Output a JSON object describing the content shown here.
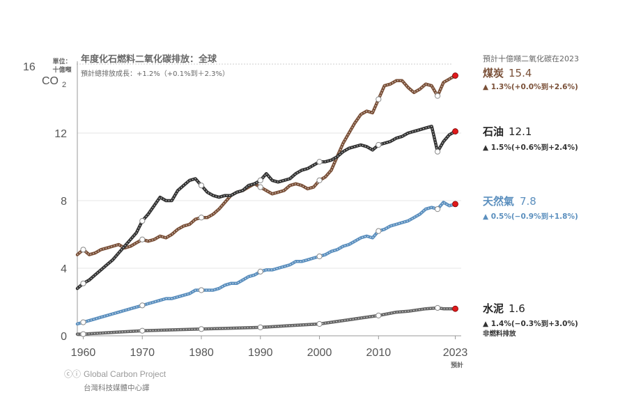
{
  "colors": {
    "coal": "#7a5038",
    "oil": "#333333",
    "gas": "#5b8fbe",
    "cement": "#666666",
    "projection_dot": "#e0191b"
  },
  "y_unit": {
    "top_number": "16",
    "unit_line1": "單位：",
    "unit_line2": "十億噸",
    "co2": "CO",
    "co2_sub": "2"
  },
  "chart_data": {
    "type": "line",
    "title": "年度化石燃料二氧化碳排放：全球",
    "subtitle": "預計總排放成長：+1.2%（+0.1%到＋2.3%）",
    "ylabel": "十億噸 CO2",
    "xlim": [
      1959,
      2024
    ],
    "ylim": [
      0,
      16
    ],
    "x_ticks": [
      "1960",
      "1970",
      "1980",
      "1990",
      "2000",
      "2010",
      "2023"
    ],
    "x_tick_values": [
      1960,
      1970,
      1980,
      1990,
      2000,
      2010,
      2023
    ],
    "x_tick_note": "預計",
    "y_ticks": [
      0,
      4,
      8,
      12
    ],
    "y_tick_labels": [
      "0",
      "4",
      "8",
      "12"
    ],
    "legend_title": "預計十億噸二氧化碳在2023",
    "series": [
      {
        "key": "coal",
        "name": "煤炭",
        "value_label": "15.4",
        "growth": "▲ 1.3%(+0.0%到+2.6%)",
        "x": [
          1959,
          1960,
          1961,
          1962,
          1963,
          1964,
          1965,
          1966,
          1967,
          1968,
          1969,
          1970,
          1971,
          1972,
          1973,
          1974,
          1975,
          1976,
          1977,
          1978,
          1979,
          1980,
          1981,
          1982,
          1983,
          1984,
          1985,
          1986,
          1987,
          1988,
          1989,
          1990,
          1991,
          1992,
          1993,
          1994,
          1995,
          1996,
          1997,
          1998,
          1999,
          2000,
          2001,
          2002,
          2003,
          2004,
          2005,
          2006,
          2007,
          2008,
          2009,
          2010,
          2011,
          2012,
          2013,
          2014,
          2015,
          2016,
          2017,
          2018,
          2019,
          2020,
          2021,
          2022,
          2023
        ],
        "y": [
          4.8,
          5.1,
          4.8,
          4.9,
          5.1,
          5.2,
          5.3,
          5.4,
          5.2,
          5.3,
          5.5,
          5.7,
          5.6,
          5.7,
          5.9,
          5.8,
          6.0,
          6.3,
          6.5,
          6.6,
          6.9,
          7.0,
          7.0,
          7.2,
          7.5,
          7.9,
          8.3,
          8.5,
          8.6,
          8.8,
          9.0,
          8.8,
          8.6,
          8.4,
          8.5,
          8.6,
          8.9,
          9.0,
          8.9,
          8.7,
          8.8,
          9.2,
          9.4,
          9.8,
          10.6,
          11.4,
          12.0,
          12.6,
          13.1,
          13.3,
          13.2,
          14.0,
          14.8,
          14.9,
          15.1,
          15.1,
          14.7,
          14.4,
          14.6,
          14.9,
          14.8,
          14.2,
          15.0,
          15.2,
          15.4
        ]
      },
      {
        "key": "oil",
        "name": "石油",
        "value_label": "12.1",
        "growth": "▲ 1.5%(+0.6%到+2.4%)",
        "x": [
          1959,
          1960,
          1961,
          1962,
          1963,
          1964,
          1965,
          1966,
          1967,
          1968,
          1969,
          1970,
          1971,
          1972,
          1973,
          1974,
          1975,
          1976,
          1977,
          1978,
          1979,
          1980,
          1981,
          1982,
          1983,
          1984,
          1985,
          1986,
          1987,
          1988,
          1989,
          1990,
          1991,
          1992,
          1993,
          1994,
          1995,
          1996,
          1997,
          1998,
          1999,
          2000,
          2001,
          2002,
          2003,
          2004,
          2005,
          2006,
          2007,
          2008,
          2009,
          2010,
          2011,
          2012,
          2013,
          2014,
          2015,
          2016,
          2017,
          2018,
          2019,
          2020,
          2021,
          2022,
          2023
        ],
        "y": [
          2.8,
          3.1,
          3.3,
          3.6,
          3.9,
          4.2,
          4.5,
          4.9,
          5.3,
          5.7,
          6.1,
          6.8,
          7.2,
          7.7,
          8.2,
          8.0,
          8.0,
          8.6,
          8.9,
          9.2,
          9.3,
          8.9,
          8.5,
          8.3,
          8.2,
          8.3,
          8.3,
          8.5,
          8.6,
          8.9,
          9.0,
          9.2,
          9.6,
          9.2,
          9.1,
          9.2,
          9.3,
          9.6,
          9.8,
          9.9,
          10.1,
          10.3,
          10.3,
          10.4,
          10.6,
          10.9,
          11.1,
          11.2,
          11.3,
          11.2,
          11.0,
          11.3,
          11.4,
          11.5,
          11.7,
          11.8,
          12.0,
          12.1,
          12.2,
          12.3,
          12.4,
          10.9,
          11.5,
          11.9,
          12.1
        ]
      },
      {
        "key": "gas",
        "name": "天然氣",
        "value_label": "7.8",
        "growth": "▲ 0.5%(−0.9%到+1.8%)",
        "x": [
          1959,
          1960,
          1961,
          1962,
          1963,
          1964,
          1965,
          1966,
          1967,
          1968,
          1969,
          1970,
          1971,
          1972,
          1973,
          1974,
          1975,
          1976,
          1977,
          1978,
          1979,
          1980,
          1981,
          1982,
          1983,
          1984,
          1985,
          1986,
          1987,
          1988,
          1989,
          1990,
          1991,
          1992,
          1993,
          1994,
          1995,
          1996,
          1997,
          1998,
          1999,
          2000,
          2001,
          2002,
          2003,
          2004,
          2005,
          2006,
          2007,
          2008,
          2009,
          2010,
          2011,
          2012,
          2013,
          2014,
          2015,
          2016,
          2017,
          2018,
          2019,
          2020,
          2021,
          2022,
          2023
        ],
        "y": [
          0.7,
          0.8,
          0.9,
          1.0,
          1.1,
          1.2,
          1.3,
          1.4,
          1.5,
          1.6,
          1.7,
          1.8,
          1.9,
          2.0,
          2.1,
          2.2,
          2.2,
          2.3,
          2.4,
          2.5,
          2.7,
          2.7,
          2.7,
          2.7,
          2.8,
          3.0,
          3.1,
          3.1,
          3.3,
          3.5,
          3.6,
          3.8,
          3.9,
          3.9,
          4.0,
          4.1,
          4.2,
          4.4,
          4.4,
          4.5,
          4.6,
          4.7,
          4.8,
          5.0,
          5.1,
          5.3,
          5.4,
          5.6,
          5.8,
          5.9,
          5.8,
          6.2,
          6.3,
          6.5,
          6.6,
          6.7,
          6.8,
          7.0,
          7.2,
          7.5,
          7.6,
          7.5,
          7.9,
          7.7,
          7.8
        ]
      },
      {
        "key": "cement",
        "name": "水泥",
        "value_label": "1.6",
        "growth": "▲ 1.4%(−0.3%到+3.0%)",
        "x": [
          1959,
          1960,
          1965,
          1970,
          1975,
          1980,
          1985,
          1990,
          1995,
          2000,
          2003,
          2005,
          2007,
          2010,
          2013,
          2015,
          2018,
          2020,
          2021,
          2022,
          2023
        ],
        "y": [
          0.1,
          0.1,
          0.2,
          0.3,
          0.35,
          0.4,
          0.45,
          0.5,
          0.6,
          0.7,
          0.85,
          0.95,
          1.05,
          1.2,
          1.4,
          1.45,
          1.6,
          1.65,
          1.6,
          1.6,
          1.6
        ]
      }
    ],
    "note": "非燃料排放"
  },
  "credits": {
    "cc": "ⓒⓘ",
    "project": "Global Carbon Project",
    "translator": "台灣科技媒體中心譯"
  }
}
